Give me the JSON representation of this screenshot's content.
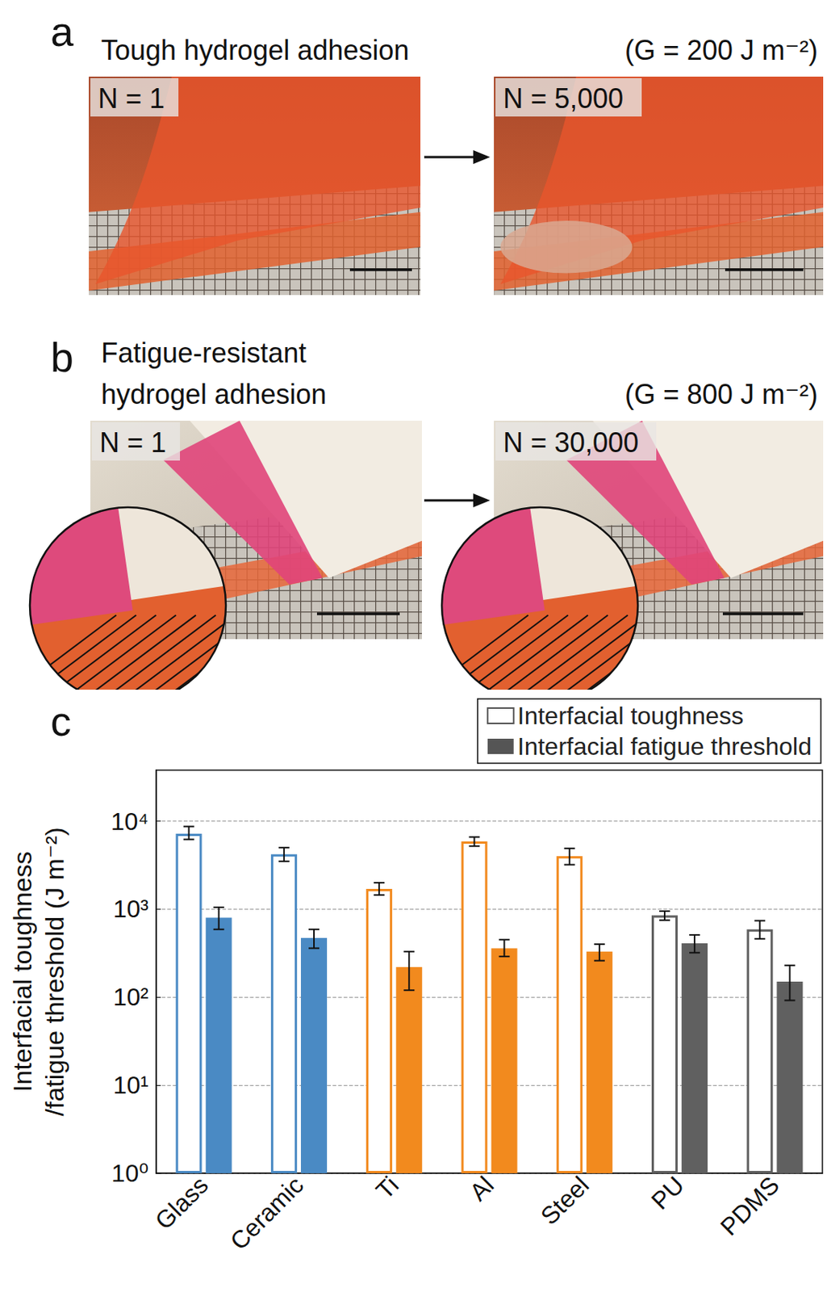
{
  "panels": [
    {
      "label": "a",
      "title": [
        "Tough hydrogel adhesion"
      ],
      "energy": "(G = 200 J m⁻²)",
      "photos": [
        "N = 1",
        "N = 5,000"
      ]
    },
    {
      "label": "b",
      "title": [
        "Fatigue-resistant",
        "hydrogel adhesion"
      ],
      "energy": "(G = 800 J m⁻²)",
      "photos": [
        "N = 1",
        "N = 30,000"
      ]
    },
    {
      "label": "c"
    }
  ],
  "chart_data": {
    "type": "bar",
    "ylabel": "Interfacial toughness\n/fatigue threshold (J m⁻²)",
    "categories": [
      "Glass",
      "Ceramic",
      "Ti",
      "Al",
      "Steel",
      "PU",
      "PDMS"
    ],
    "series": [
      {
        "name": "Interfacial toughness",
        "color": "#555555",
        "marker": "hollow",
        "colors": [
          "#4a8ac4",
          "#4a8ac4",
          "#f28a1e",
          "#f28a1e",
          "#f28a1e",
          "#606060",
          "#606060"
        ],
        "values": [
          7200,
          4200,
          1700,
          5900,
          4000,
          850,
          590
        ],
        "errors": [
          [
            6200,
            8700
          ],
          [
            3500,
            5000
          ],
          [
            1450,
            2000
          ],
          [
            5200,
            6600
          ],
          [
            3200,
            4900
          ],
          [
            750,
            950
          ],
          [
            460,
            740
          ]
        ]
      },
      {
        "name": "Interfacial fatigue threshold",
        "color": "#555555",
        "marker": "filled",
        "colors": [
          "#4a8ac4",
          "#4a8ac4",
          "#f28a1e",
          "#f28a1e",
          "#f28a1e",
          "#606060",
          "#606060"
        ],
        "values": [
          800,
          470,
          220,
          360,
          330,
          410,
          150
        ],
        "errors": [
          [
            590,
            1050
          ],
          [
            360,
            590
          ],
          [
            120,
            330
          ],
          [
            290,
            450
          ],
          [
            260,
            400
          ],
          [
            320,
            510
          ],
          [
            92,
            230
          ]
        ]
      }
    ],
    "log": "y",
    "ylim": [
      1,
      38000
    ],
    "yticks": [
      {
        "value": 1,
        "label": "10⁰"
      },
      {
        "value": 10,
        "label": "10¹"
      },
      {
        "value": 100,
        "label": "10²"
      },
      {
        "value": 1000,
        "label": "10³"
      },
      {
        "value": 10000,
        "label": "10⁴"
      }
    ],
    "grid": true,
    "legend": "upper right"
  }
}
